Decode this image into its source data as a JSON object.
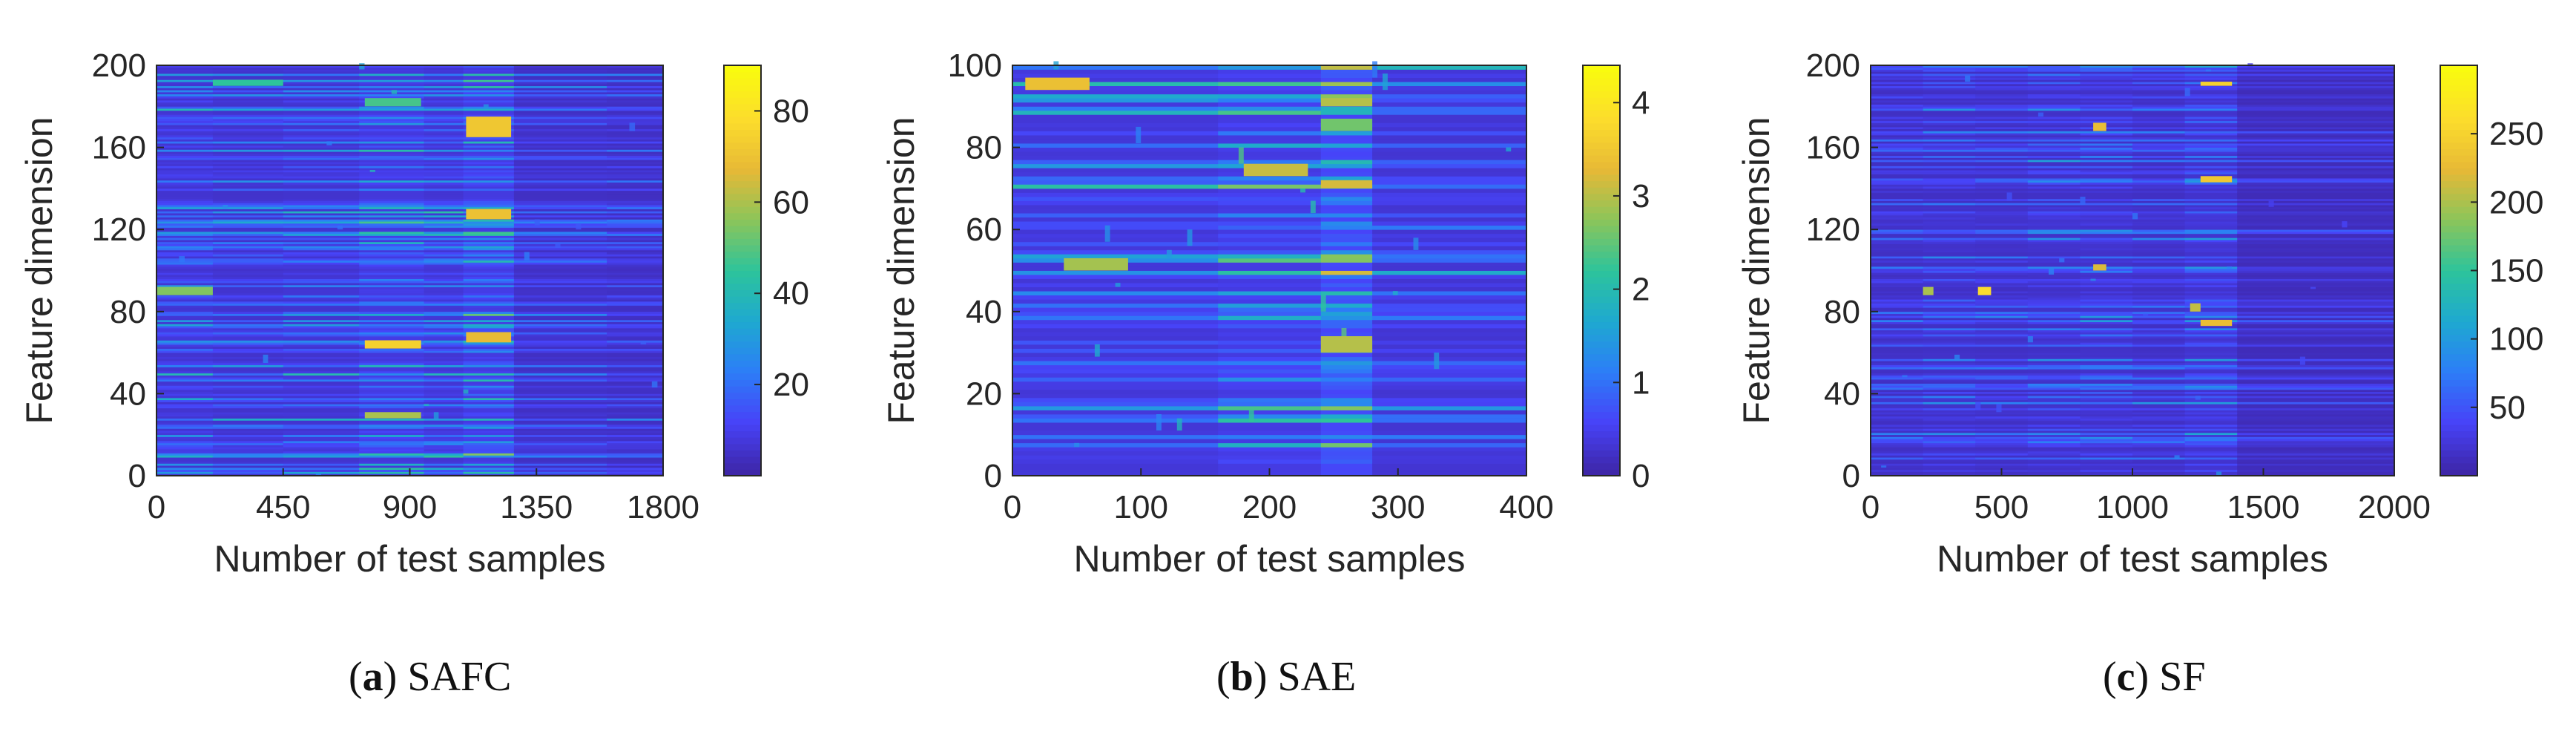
{
  "colors": {
    "colormap": [
      "#3e26a8",
      "#4743f8",
      "#2c7ef7",
      "#1ea9d0",
      "#2dc49b",
      "#8bc55a",
      "#e7b936",
      "#fcdd2c",
      "#f9fb0e"
    ],
    "text": "#262626",
    "axis": "#262626"
  },
  "panels": [
    {
      "caption": {
        "letter": "a",
        "title": "SAFC"
      },
      "chart_data": {
        "type": "heatmap",
        "title": "",
        "xlabel": "Number of test samples",
        "ylabel": "Feature dimension",
        "xlim": [
          0,
          1800
        ],
        "ylim": [
          0,
          200
        ],
        "xticks": [
          0,
          450,
          900,
          1350,
          1800
        ],
        "yticks": [
          0,
          40,
          80,
          120,
          160,
          200
        ],
        "colorbar": {
          "range": [
            0,
            90
          ],
          "ticks": [
            20,
            40,
            60,
            80
          ]
        },
        "segments": [
          {
            "x": [
              0,
              200
            ],
            "level": 16
          },
          {
            "x": [
              200,
              450
            ],
            "level": 14
          },
          {
            "x": [
              450,
              720
            ],
            "level": 15
          },
          {
            "x": [
              720,
              950
            ],
            "level": 20
          },
          {
            "x": [
              950,
              1090
            ],
            "level": 17
          },
          {
            "x": [
              1090,
              1270
            ],
            "level": 22
          },
          {
            "x": [
              1270,
              1600
            ],
            "level": 11
          },
          {
            "x": [
              1600,
              1800
            ],
            "level": 10
          }
        ],
        "hotspots": [
          {
            "x": [
              740,
              940
            ],
            "y": [
              62,
              66
            ],
            "value": 75
          },
          {
            "x": [
              1100,
              1260
            ],
            "y": [
              65,
              70
            ],
            "value": 68
          },
          {
            "x": [
              1100,
              1260
            ],
            "y": [
              165,
              175
            ],
            "value": 72
          },
          {
            "x": [
              1100,
              1260
            ],
            "y": [
              125,
              130
            ],
            "value": 70
          },
          {
            "x": [
              0,
              200
            ],
            "y": [
              88,
              92
            ],
            "value": 55
          },
          {
            "x": [
              740,
              940
            ],
            "y": [
              28,
              31
            ],
            "value": 60
          },
          {
            "x": [
              200,
              450
            ],
            "y": [
              190,
              193
            ],
            "value": 45
          },
          {
            "x": [
              740,
              940
            ],
            "y": [
              180,
              184
            ],
            "value": 48
          }
        ]
      }
    },
    {
      "caption": {
        "letter": "b",
        "title": "SAE"
      },
      "chart_data": {
        "type": "heatmap",
        "title": "",
        "xlabel": "Number of test samples",
        "ylabel": "Feature dimension",
        "xlim": [
          0,
          400
        ],
        "ylim": [
          0,
          100
        ],
        "xticks": [
          0,
          100,
          200,
          300,
          400
        ],
        "yticks": [
          0,
          20,
          40,
          60,
          80,
          100
        ],
        "colorbar": {
          "range": [
            0,
            4.4
          ],
          "ticks": [
            0,
            1,
            2,
            3,
            4
          ]
        },
        "segments": [
          {
            "x": [
              0,
              160
            ],
            "level": 0.9
          },
          {
            "x": [
              160,
              240
            ],
            "level": 1.1
          },
          {
            "x": [
              240,
              280
            ],
            "level": 1.6
          },
          {
            "x": [
              280,
              400
            ],
            "level": 0.8
          }
        ],
        "hotspots": [
          {
            "x": [
              240,
              280
            ],
            "y": [
              30,
              34
            ],
            "value": 3.0
          },
          {
            "x": [
              240,
              280
            ],
            "y": [
              70,
              72
            ],
            "value": 3.2
          },
          {
            "x": [
              240,
              280
            ],
            "y": [
              90,
              92
            ],
            "value": 3.0
          },
          {
            "x": [
              240,
              280
            ],
            "y": [
              84,
              87
            ],
            "value": 2.6
          },
          {
            "x": [
              10,
              60
            ],
            "y": [
              94,
              97
            ],
            "value": 3.4
          },
          {
            "x": [
              180,
              230
            ],
            "y": [
              73,
              76
            ],
            "value": 3.1
          },
          {
            "x": [
              40,
              90
            ],
            "y": [
              50,
              53
            ],
            "value": 2.9
          }
        ]
      }
    },
    {
      "caption": {
        "letter": "c",
        "title": "SF"
      },
      "chart_data": {
        "type": "heatmap",
        "title": "",
        "xlabel": "Number of test samples",
        "ylabel": "Feature dimension",
        "xlim": [
          0,
          2000
        ],
        "ylim": [
          0,
          200
        ],
        "xticks": [
          0,
          500,
          1000,
          1500,
          2000
        ],
        "yticks": [
          0,
          40,
          80,
          120,
          160,
          200
        ],
        "colorbar": {
          "range": [
            0,
            300
          ],
          "ticks": [
            50,
            100,
            150,
            200,
            250
          ]
        },
        "segments": [
          {
            "x": [
              0,
              200
            ],
            "level": 35
          },
          {
            "x": [
              200,
              400
            ],
            "level": 38
          },
          {
            "x": [
              400,
              600
            ],
            "level": 36
          },
          {
            "x": [
              600,
              800
            ],
            "level": 40
          },
          {
            "x": [
              800,
              1000
            ],
            "level": 42
          },
          {
            "x": [
              1000,
              1200
            ],
            "level": 37
          },
          {
            "x": [
              1200,
              1400
            ],
            "level": 48
          },
          {
            "x": [
              1400,
              2000
            ],
            "level": 22
          }
        ],
        "hotspots": [
          {
            "x": [
              1260,
              1380
            ],
            "y": [
              190,
              192
            ],
            "value": 250
          },
          {
            "x": [
              1260,
              1380
            ],
            "y": [
              143,
              146
            ],
            "value": 240
          },
          {
            "x": [
              1260,
              1380
            ],
            "y": [
              73,
              76
            ],
            "value": 230
          },
          {
            "x": [
              410,
              460
            ],
            "y": [
              88,
              92
            ],
            "value": 260
          },
          {
            "x": [
              850,
              900
            ],
            "y": [
              168,
              172
            ],
            "value": 230
          },
          {
            "x": [
              850,
              900
            ],
            "y": [
              100,
              103
            ],
            "value": 220
          },
          {
            "x": [
              1220,
              1260
            ],
            "y": [
              80,
              84
            ],
            "value": 210
          },
          {
            "x": [
              200,
              240
            ],
            "y": [
              88,
              92
            ],
            "value": 200
          }
        ]
      }
    }
  ]
}
